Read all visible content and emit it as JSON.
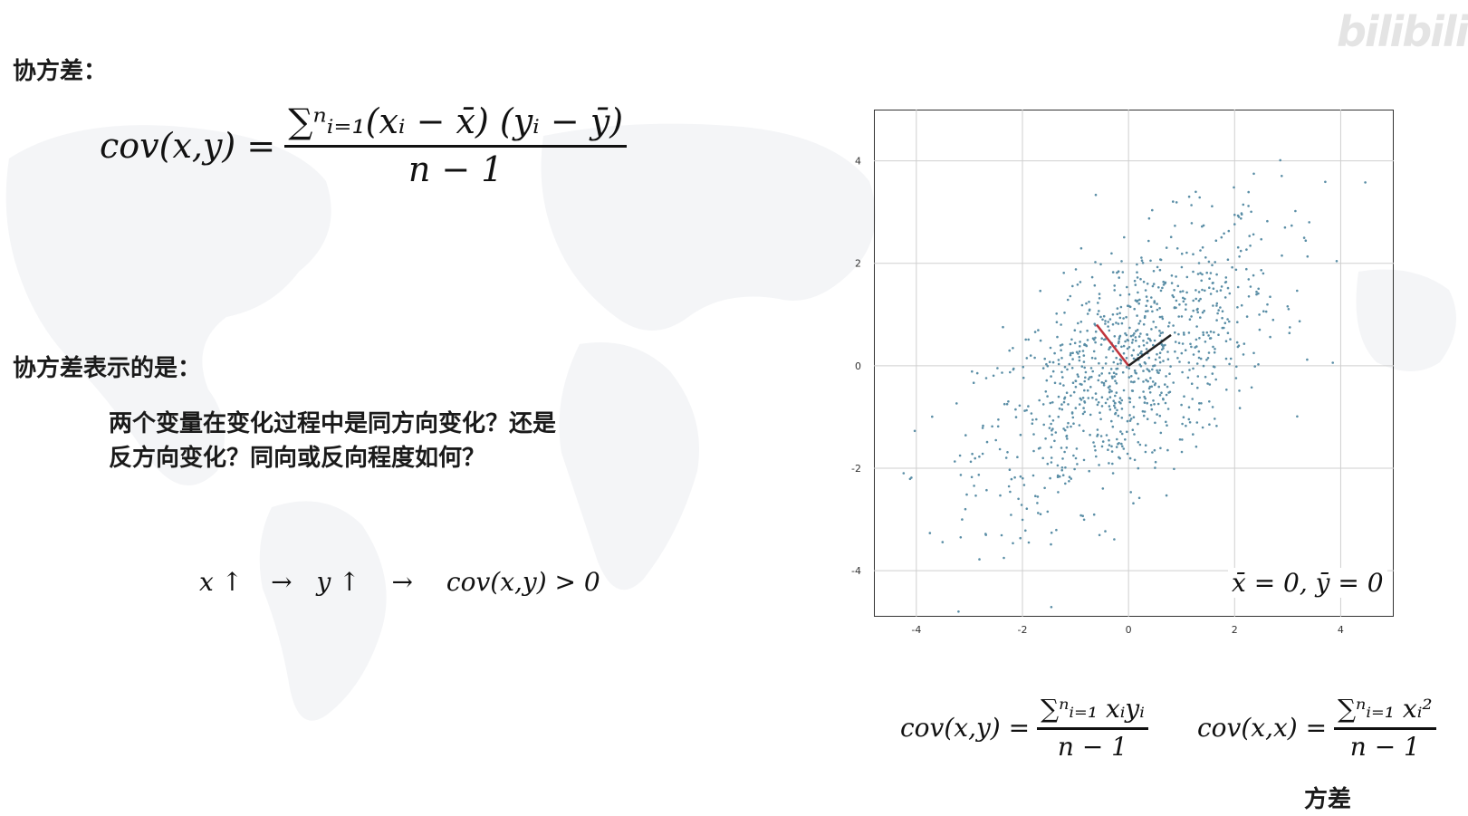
{
  "watermark": "bilibili",
  "section1": {
    "heading": "协方差：",
    "formula": {
      "lhs": "cov(x,y) =",
      "numerator": "∑ⁿᵢ₌₁(xᵢ − x̄) (yᵢ − ȳ)",
      "denominator": "n − 1"
    }
  },
  "section2": {
    "heading": "协方差表示的是：",
    "line1": "两个变量在变化过程中是同方向变化？还是",
    "line2": "反方向变化？同向或反向程度如何？",
    "relation": {
      "x_part": "x ↑",
      "arrow1": "→",
      "y_part": "y ↑",
      "arrow2": "→",
      "result": "cov(x,y) > 0"
    }
  },
  "plot_annotation": "x̄ = 0, ȳ = 0",
  "bottom_formulas": {
    "left": {
      "lhs": "cov(x,y) =",
      "numerator": "∑ⁿᵢ₌₁ xᵢyᵢ",
      "denominator": "n − 1"
    },
    "right": {
      "lhs": "cov(x,x) =",
      "numerator": "∑ⁿᵢ₌₁ xᵢ²",
      "denominator": "n − 1"
    },
    "caption": "方差"
  },
  "chart_data": {
    "type": "scatter",
    "xlim": [
      -4.8,
      5.0
    ],
    "ylim": [
      -4.9,
      5.0
    ],
    "x_ticks": [
      -4,
      -2,
      0,
      2,
      4
    ],
    "y_ticks": [
      -4,
      -2,
      0,
      2,
      4
    ],
    "x_tick_labels": [
      "-4",
      "-2",
      "0",
      "2",
      "4"
    ],
    "y_tick_labels": [
      "-4",
      "-2",
      "0",
      "2",
      "4"
    ],
    "grid": true,
    "point_color": "#5a8ea6",
    "n_points": 1000,
    "mean": [
      0,
      0
    ],
    "covariance": [
      [
        2.0,
        1.2
      ],
      [
        1.2,
        2.0
      ]
    ],
    "vectors": [
      {
        "color": "#c0343c",
        "from": [
          0,
          0
        ],
        "to": [
          -0.6,
          0.8
        ]
      },
      {
        "color": "#222222",
        "from": [
          0,
          0
        ],
        "to": [
          0.8,
          0.6
        ]
      }
    ]
  }
}
